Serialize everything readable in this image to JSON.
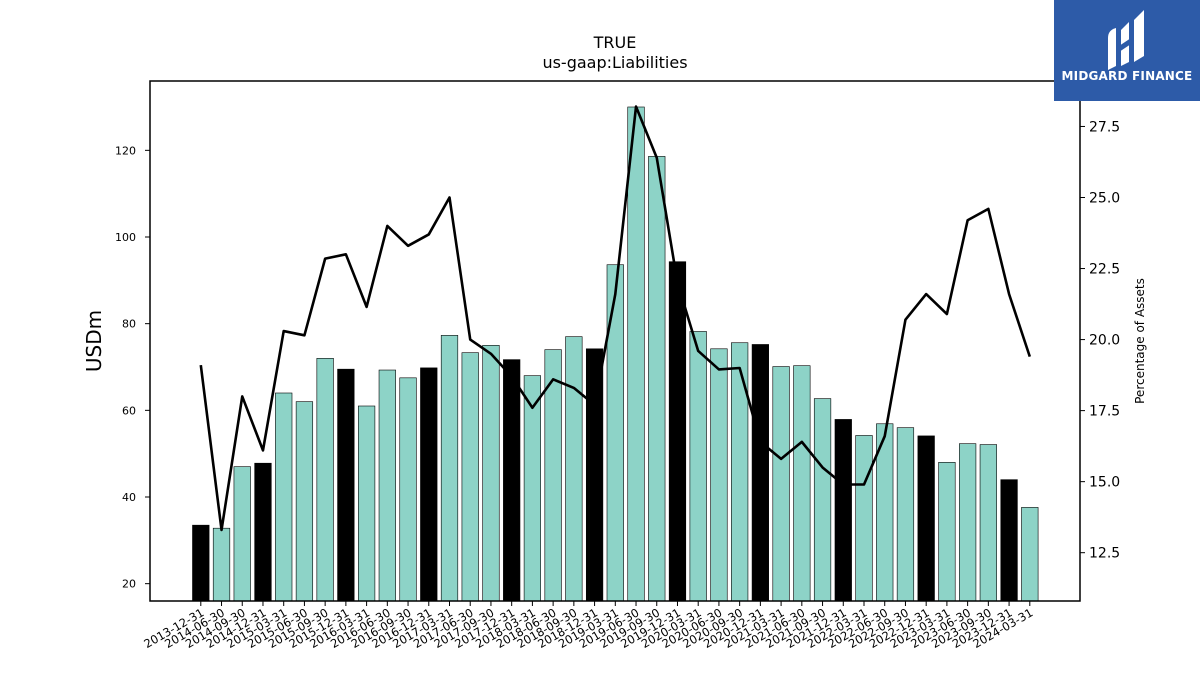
{
  "chart_data": {
    "type": "bar",
    "title": "TRUE",
    "subtitle": "us-gaap:Liabilities",
    "ylabel": "USDm",
    "y2label": "Percentage of Assets",
    "ylim": [
      16,
      136
    ],
    "y2lim": [
      10.8,
      29.1
    ],
    "yticks": [
      20,
      40,
      60,
      80,
      100,
      120
    ],
    "y2ticks": [
      "12.5",
      "15.0",
      "17.5",
      "20.0",
      "22.5",
      "25.0",
      "27.5"
    ],
    "grid": false,
    "categories": [
      "2013-12-31",
      "2014-06-30",
      "2014-09-30",
      "2014-12-31",
      "2015-03-31",
      "2015-06-30",
      "2015-09-30",
      "2015-12-31",
      "2016-03-31",
      "2016-06-30",
      "2016-09-30",
      "2016-12-31",
      "2017-03-31",
      "2017-06-30",
      "2017-09-30",
      "2017-12-31",
      "2018-03-31",
      "2018-06-30",
      "2018-09-30",
      "2018-12-31",
      "2019-03-31",
      "2019-06-30",
      "2019-09-30",
      "2019-12-31",
      "2020-03-31",
      "2020-06-30",
      "2020-09-30",
      "2020-12-31",
      "2021-03-31",
      "2021-06-30",
      "2021-09-30",
      "2021-12-31",
      "2022-03-31",
      "2022-06-30",
      "2022-09-30",
      "2022-12-31",
      "2023-03-31",
      "2023-06-30",
      "2023-09-30",
      "2023-12-31",
      "2024-03-31"
    ],
    "series": [
      {
        "type": "bar",
        "axis": "left",
        "values": [
          33.5,
          32.8,
          47.0,
          47.8,
          64.0,
          62.0,
          72.0,
          69.5,
          61.0,
          69.3,
          67.5,
          69.8,
          77.3,
          73.3,
          75.0,
          71.7,
          68.0,
          74.0,
          77.0,
          74.2,
          93.6,
          130.0,
          118.6,
          94.3,
          78.2,
          74.2,
          75.6,
          75.2,
          70.1,
          70.3,
          62.7,
          57.9,
          54.2,
          56.9,
          56.0,
          54.1,
          48.0,
          52.3,
          52.1,
          44.0,
          37.6
        ],
        "year_end_color": "#000000",
        "color": "#8dd3c7"
      },
      {
        "type": "line",
        "axis": "right",
        "color": "#000000",
        "values": [
          19.1,
          13.3,
          18.0,
          16.1,
          20.3,
          20.15,
          22.85,
          23.0,
          21.15,
          24.0,
          23.3,
          23.7,
          25.0,
          20.0,
          19.5,
          18.7,
          17.6,
          18.6,
          18.3,
          17.7,
          21.6,
          28.2,
          26.4,
          22.0,
          19.6,
          18.95,
          19.0,
          16.4,
          15.8,
          16.4,
          15.5,
          14.9,
          14.9,
          16.6,
          20.7,
          21.6,
          20.9,
          24.2,
          24.6,
          21.6,
          19.4
        ]
      }
    ]
  },
  "logo": {
    "text": "MIDGARD FINANCE"
  }
}
